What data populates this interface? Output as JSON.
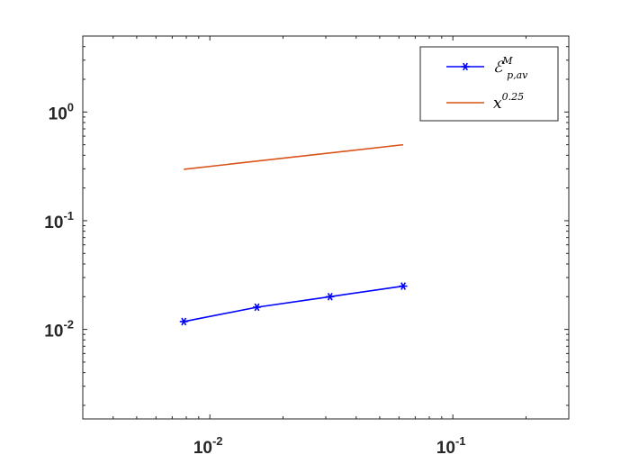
{
  "chart_data": {
    "type": "line",
    "xscale": "log",
    "yscale": "log",
    "xlim": [
      0.003,
      0.3
    ],
    "ylim": [
      0.0015,
      5
    ],
    "grid": false,
    "legend_position": "top-right",
    "x_ticks": [
      {
        "value": 0.01,
        "base": "10",
        "exp": "-2"
      },
      {
        "value": 0.1,
        "base": "10",
        "exp": "-1"
      }
    ],
    "y_ticks": [
      {
        "value": 0.01,
        "base": "10",
        "exp": "-2"
      },
      {
        "value": 0.1,
        "base": "10",
        "exp": "-1"
      },
      {
        "value": 1,
        "base": "10",
        "exp": "0"
      }
    ],
    "series": [
      {
        "name": "ℰ_{p,av}^M",
        "label_main": "ℰ",
        "label_sub": "p,av",
        "label_sup": "M",
        "color": "#0000FF",
        "marker": "asterisk",
        "x": [
          0.0078125,
          0.015625,
          0.03125,
          0.0625
        ],
        "y": [
          0.0118,
          0.016,
          0.02,
          0.025
        ]
      },
      {
        "name": "x^{0.25}",
        "label_main": "x",
        "label_sup": "0.25",
        "color": "#D95319",
        "marker": "none",
        "x": [
          0.0078125,
          0.0625
        ],
        "y": [
          0.297,
          0.5
        ]
      }
    ]
  }
}
